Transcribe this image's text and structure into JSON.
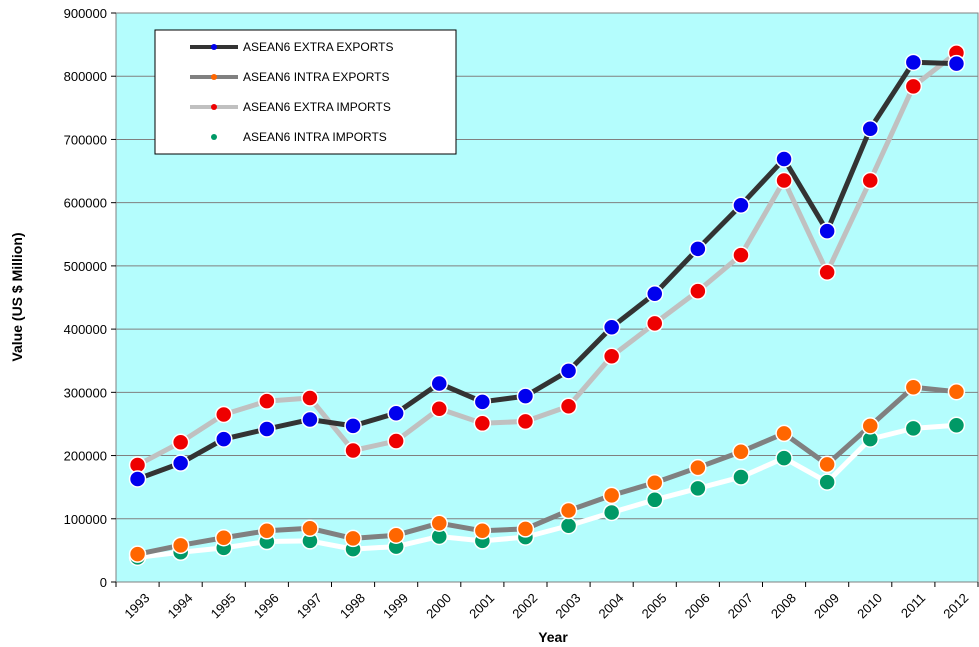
{
  "chart_data": {
    "type": "line",
    "title": "",
    "xlabel": "Year",
    "ylabel": "Value (US $ Million)",
    "x": [
      "1993",
      "1994",
      "1995",
      "1996",
      "1997",
      "1998",
      "1999",
      "2000",
      "2001",
      "2002",
      "2003",
      "2004",
      "2005",
      "2006",
      "2007",
      "2008",
      "2009",
      "2010",
      "2011",
      "2012"
    ],
    "ylim": [
      0,
      900000
    ],
    "yticks": [
      "0",
      "100000",
      "200000",
      "300000",
      "400000",
      "500000",
      "600000",
      "700000",
      "800000",
      "900000"
    ],
    "grid": true,
    "legend_position": "top-left",
    "background": "#b4fdfd",
    "series": [
      {
        "name": "ASEAN6 EXTRA EXPORTS",
        "line_color": "#333333",
        "marker_color": "#0000ee",
        "values": [
          163000,
          188000,
          226000,
          242000,
          257000,
          247000,
          267000,
          314000,
          285000,
          294000,
          334000,
          403000,
          456000,
          527000,
          596000,
          669000,
          555000,
          717000,
          822000,
          820000
        ]
      },
      {
        "name": "ASEAN6 INTRA EXPORTS",
        "line_color": "#808080",
        "marker_color": "#ff6600",
        "values": [
          44000,
          58000,
          70000,
          81000,
          85000,
          69000,
          74000,
          93000,
          81000,
          84000,
          113000,
          137000,
          157000,
          181000,
          206000,
          235000,
          186000,
          247000,
          308000,
          301000
        ]
      },
      {
        "name": "ASEAN6 EXTRA IMPORTS",
        "line_color": "#c0c0c0",
        "marker_color": "#ee0000",
        "values": [
          185000,
          221000,
          265000,
          286000,
          291000,
          208000,
          223000,
          274000,
          251000,
          254000,
          278000,
          357000,
          409000,
          460000,
          517000,
          635000,
          490000,
          635000,
          784000,
          837000
        ]
      },
      {
        "name": "ASEAN6 INTRA IMPORTS",
        "line_color": "#ffffff",
        "marker_color": "#009966",
        "values": [
          39000,
          47000,
          54000,
          64000,
          65000,
          52000,
          56000,
          72000,
          65000,
          71000,
          89000,
          110000,
          130000,
          148000,
          166000,
          196000,
          158000,
          226000,
          243000,
          248000
        ]
      }
    ]
  }
}
